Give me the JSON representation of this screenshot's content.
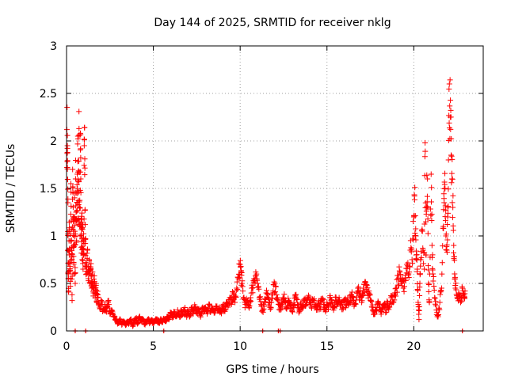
{
  "chart_data": {
    "type": "scatter",
    "title": "Day 144 of 2025, SRMTID for receiver nklg",
    "xlabel": "GPS time / hours",
    "ylabel": "SRMTID / TECUs",
    "xlim": [
      0,
      24
    ],
    "ylim": [
      0,
      3
    ],
    "xticks": [
      0,
      5,
      10,
      15,
      20
    ],
    "xtick_labels": [
      "0",
      "5",
      "10",
      "15",
      "20"
    ],
    "yticks": [
      0,
      0.5,
      1,
      1.5,
      2,
      2.5,
      3
    ],
    "ytick_labels": [
      "0",
      "0.5",
      "1",
      "1.5",
      "2",
      "2.5",
      "3"
    ],
    "grid": true,
    "marker": "plus",
    "series": [
      {
        "name": "SRMTID",
        "color": "#ff0000",
        "points": [
          [
            0.02,
            2.12
          ],
          [
            0.05,
            1.95
          ],
          [
            0.05,
            1.72
          ],
          [
            0.08,
            1.35
          ],
          [
            0.08,
            0.85
          ],
          [
            0.1,
            0.55
          ],
          [
            0.12,
            0.42
          ],
          [
            0.15,
            1.05
          ],
          [
            0.18,
            0.8
          ],
          [
            0.2,
            0.68
          ],
          [
            0.22,
            0.47
          ],
          [
            0.25,
            1.55
          ],
          [
            0.28,
            0.95
          ],
          [
            0.3,
            0.88
          ],
          [
            0.32,
            0.32
          ],
          [
            0.35,
            1.7
          ],
          [
            0.38,
            1.2
          ],
          [
            0.4,
            0.9
          ],
          [
            0.42,
            0.6
          ],
          [
            0.45,
            1.45
          ],
          [
            0.48,
            1.0
          ],
          [
            0.5,
            0.5
          ],
          [
            0.52,
            1.6
          ],
          [
            0.55,
            1.25
          ],
          [
            0.58,
            0.95
          ],
          [
            0.6,
            1.35
          ],
          [
            0.62,
            1.65
          ],
          [
            0.65,
            2.05
          ],
          [
            0.68,
            1.12
          ],
          [
            0.7,
            1.57
          ],
          [
            0.72,
            2.13
          ],
          [
            0.75,
            1.3
          ],
          [
            0.78,
            1.0
          ],
          [
            0.8,
            2.08
          ],
          [
            0.82,
            1.6
          ],
          [
            0.85,
            0.88
          ],
          [
            0.88,
            1.18
          ],
          [
            0.9,
            0.75
          ],
          [
            0.92,
            1.07
          ],
          [
            0.95,
            0.65
          ],
          [
            0.98,
            0.98
          ],
          [
            1.0,
            0.8
          ],
          [
            1.02,
            1.95
          ],
          [
            1.05,
            1.81
          ],
          [
            1.08,
            0.92
          ],
          [
            1.1,
            0.72
          ],
          [
            1.15,
            0.6
          ],
          [
            1.2,
            0.85
          ],
          [
            1.25,
            0.55
          ],
          [
            1.3,
            0.75
          ],
          [
            1.35,
            0.5
          ],
          [
            1.4,
            0.65
          ],
          [
            1.45,
            0.45
          ],
          [
            1.5,
            0.62
          ],
          [
            1.55,
            0.4
          ],
          [
            1.6,
            0.58
          ],
          [
            1.65,
            0.35
          ],
          [
            1.7,
            0.48
          ],
          [
            1.75,
            0.3
          ],
          [
            1.8,
            0.38
          ],
          [
            1.9,
            0.25
          ],
          [
            2.0,
            0.32
          ],
          [
            2.1,
            0.22
          ],
          [
            2.2,
            0.28
          ],
          [
            2.3,
            0.2
          ],
          [
            2.4,
            0.3
          ],
          [
            2.5,
            0.18
          ],
          [
            2.6,
            0.22
          ],
          [
            2.7,
            0.15
          ],
          [
            2.8,
            0.12
          ],
          [
            2.9,
            0.1
          ],
          [
            3.0,
            0.08
          ],
          [
            3.1,
            0.12
          ],
          [
            3.2,
            0.07
          ],
          [
            3.3,
            0.1
          ],
          [
            3.4,
            0.06
          ],
          [
            3.5,
            0.1
          ],
          [
            3.6,
            0.08
          ],
          [
            3.7,
            0.12
          ],
          [
            3.8,
            0.06
          ],
          [
            3.9,
            0.1
          ],
          [
            4.0,
            0.13
          ],
          [
            4.1,
            0.08
          ],
          [
            4.2,
            0.15
          ],
          [
            4.3,
            0.1
          ],
          [
            4.4,
            0.12
          ],
          [
            4.5,
            0.08
          ],
          [
            4.6,
            0.1
          ],
          [
            4.7,
            0.12
          ],
          [
            4.8,
            0.09
          ],
          [
            4.9,
            0.11
          ],
          [
            5.0,
            0.08
          ],
          [
            5.1,
            0.1
          ],
          [
            5.2,
            0.12
          ],
          [
            5.3,
            0.09
          ],
          [
            5.4,
            0.11
          ],
          [
            5.5,
            0.1
          ],
          [
            5.6,
            0.13
          ],
          [
            5.7,
            0.11
          ],
          [
            5.8,
            0.15
          ],
          [
            5.9,
            0.12
          ],
          [
            6.0,
            0.18
          ],
          [
            6.1,
            0.14
          ],
          [
            6.2,
            0.2
          ],
          [
            6.3,
            0.15
          ],
          [
            6.4,
            0.22
          ],
          [
            6.5,
            0.16
          ],
          [
            6.6,
            0.2
          ],
          [
            6.7,
            0.18
          ],
          [
            6.8,
            0.22
          ],
          [
            6.9,
            0.17
          ],
          [
            7.0,
            0.2
          ],
          [
            7.1,
            0.15
          ],
          [
            7.2,
            0.23
          ],
          [
            7.3,
            0.18
          ],
          [
            7.4,
            0.25
          ],
          [
            7.5,
            0.19
          ],
          [
            7.6,
            0.22
          ],
          [
            7.7,
            0.16
          ],
          [
            7.8,
            0.24
          ],
          [
            7.9,
            0.2
          ],
          [
            8.0,
            0.25
          ],
          [
            8.1,
            0.18
          ],
          [
            8.2,
            0.28
          ],
          [
            8.3,
            0.2
          ],
          [
            8.4,
            0.24
          ],
          [
            8.5,
            0.19
          ],
          [
            8.6,
            0.26
          ],
          [
            8.7,
            0.21
          ],
          [
            8.8,
            0.25
          ],
          [
            8.9,
            0.2
          ],
          [
            9.0,
            0.27
          ],
          [
            9.1,
            0.22
          ],
          [
            9.2,
            0.3
          ],
          [
            9.3,
            0.25
          ],
          [
            9.4,
            0.35
          ],
          [
            9.5,
            0.28
          ],
          [
            9.6,
            0.4
          ],
          [
            9.7,
            0.3
          ],
          [
            9.8,
            0.45
          ],
          [
            9.9,
            0.55
          ],
          [
            10.0,
            0.7
          ],
          [
            10.05,
            0.62
          ],
          [
            10.1,
            0.5
          ],
          [
            10.2,
            0.35
          ],
          [
            10.3,
            0.28
          ],
          [
            10.4,
            0.3
          ],
          [
            10.5,
            0.25
          ],
          [
            10.6,
            0.35
          ],
          [
            10.7,
            0.45
          ],
          [
            10.8,
            0.55
          ],
          [
            10.9,
            0.62
          ],
          [
            11.0,
            0.5
          ],
          [
            11.1,
            0.35
          ],
          [
            11.2,
            0.28
          ],
          [
            11.3,
            0.22
          ],
          [
            11.4,
            0.3
          ],
          [
            11.5,
            0.4
          ],
          [
            11.6,
            0.35
          ],
          [
            11.7,
            0.25
          ],
          [
            11.8,
            0.3
          ],
          [
            11.9,
            0.42
          ],
          [
            12.0,
            0.5
          ],
          [
            12.1,
            0.38
          ],
          [
            12.2,
            0.28
          ],
          [
            12.3,
            0.22
          ],
          [
            12.4,
            0.28
          ],
          [
            12.5,
            0.35
          ],
          [
            12.6,
            0.3
          ],
          [
            12.7,
            0.25
          ],
          [
            12.8,
            0.32
          ],
          [
            12.9,
            0.28
          ],
          [
            13.0,
            0.22
          ],
          [
            13.1,
            0.3
          ],
          [
            13.2,
            0.35
          ],
          [
            13.3,
            0.28
          ],
          [
            13.4,
            0.22
          ],
          [
            13.5,
            0.3
          ],
          [
            13.6,
            0.25
          ],
          [
            13.7,
            0.32
          ],
          [
            13.8,
            0.28
          ],
          [
            13.9,
            0.35
          ],
          [
            14.0,
            0.3
          ],
          [
            14.1,
            0.25
          ],
          [
            14.2,
            0.32
          ],
          [
            14.3,
            0.28
          ],
          [
            14.4,
            0.22
          ],
          [
            14.5,
            0.3
          ],
          [
            14.6,
            0.25
          ],
          [
            14.7,
            0.32
          ],
          [
            14.8,
            0.28
          ],
          [
            14.9,
            0.22
          ],
          [
            15.0,
            0.3
          ],
          [
            15.1,
            0.27
          ],
          [
            15.2,
            0.35
          ],
          [
            15.3,
            0.3
          ],
          [
            15.4,
            0.25
          ],
          [
            15.5,
            0.32
          ],
          [
            15.6,
            0.28
          ],
          [
            15.7,
            0.35
          ],
          [
            15.8,
            0.3
          ],
          [
            15.9,
            0.25
          ],
          [
            16.0,
            0.32
          ],
          [
            16.1,
            0.28
          ],
          [
            16.2,
            0.35
          ],
          [
            16.3,
            0.3
          ],
          [
            16.4,
            0.38
          ],
          [
            16.5,
            0.32
          ],
          [
            16.6,
            0.28
          ],
          [
            16.7,
            0.35
          ],
          [
            16.8,
            0.42
          ],
          [
            16.9,
            0.38
          ],
          [
            17.0,
            0.3
          ],
          [
            17.1,
            0.45
          ],
          [
            17.2,
            0.52
          ],
          [
            17.3,
            0.48
          ],
          [
            17.4,
            0.4
          ],
          [
            17.5,
            0.32
          ],
          [
            17.6,
            0.25
          ],
          [
            17.7,
            0.2
          ],
          [
            17.8,
            0.22
          ],
          [
            17.9,
            0.28
          ],
          [
            18.0,
            0.25
          ],
          [
            18.1,
            0.2
          ],
          [
            18.2,
            0.24
          ],
          [
            18.3,
            0.28
          ],
          [
            18.4,
            0.22
          ],
          [
            18.5,
            0.3
          ],
          [
            18.6,
            0.25
          ],
          [
            18.7,
            0.35
          ],
          [
            18.8,
            0.3
          ],
          [
            18.9,
            0.4
          ],
          [
            19.0,
            0.45
          ],
          [
            19.1,
            0.55
          ],
          [
            19.2,
            0.62
          ],
          [
            19.3,
            0.5
          ],
          [
            19.4,
            0.45
          ],
          [
            19.5,
            0.55
          ],
          [
            19.6,
            0.7
          ],
          [
            19.7,
            0.6
          ],
          [
            19.8,
            0.85
          ],
          [
            19.9,
            0.75
          ],
          [
            20.0,
            1.2
          ],
          [
            20.05,
            1.38
          ],
          [
            20.1,
            1.0
          ],
          [
            20.15,
            0.8
          ],
          [
            20.2,
            0.65
          ],
          [
            20.25,
            0.3
          ],
          [
            20.3,
            0.12
          ],
          [
            20.35,
            0.5
          ],
          [
            20.4,
            0.75
          ],
          [
            20.5,
            1.05
          ],
          [
            20.6,
            0.65
          ],
          [
            20.65,
            1.98
          ],
          [
            20.7,
            0.8
          ],
          [
            20.75,
            1.64
          ],
          [
            20.8,
            1.3
          ],
          [
            20.85,
            0.5
          ],
          [
            20.9,
            0.3
          ],
          [
            21.0,
            1.65
          ],
          [
            21.05,
            0.9
          ],
          [
            21.1,
            0.6
          ],
          [
            21.2,
            0.35
          ],
          [
            21.3,
            0.22
          ],
          [
            21.4,
            0.15
          ],
          [
            21.5,
            0.3
          ],
          [
            21.6,
            0.45
          ],
          [
            21.7,
            1.1
          ],
          [
            21.75,
            1.35
          ],
          [
            21.8,
            1.5
          ],
          [
            21.85,
            1.0
          ],
          [
            21.9,
            0.85
          ],
          [
            21.95,
            1.2
          ],
          [
            22.0,
            1.8
          ],
          [
            22.05,
            2.6
          ],
          [
            22.1,
            2.25
          ],
          [
            22.15,
            1.85
          ],
          [
            22.2,
            1.6
          ],
          [
            22.25,
            1.3
          ],
          [
            22.3,
            0.9
          ],
          [
            22.35,
            0.6
          ],
          [
            22.4,
            0.45
          ],
          [
            22.5,
            0.35
          ],
          [
            22.6,
            0.4
          ],
          [
            22.7,
            0.3
          ],
          [
            22.8,
            0.45
          ],
          [
            22.9,
            0.35
          ],
          [
            22.95,
            0.42
          ]
        ]
      }
    ],
    "zero_markers_x": [
      0.5,
      1.1,
      5.6,
      11.3,
      12.2,
      12.3,
      22.8
    ]
  }
}
